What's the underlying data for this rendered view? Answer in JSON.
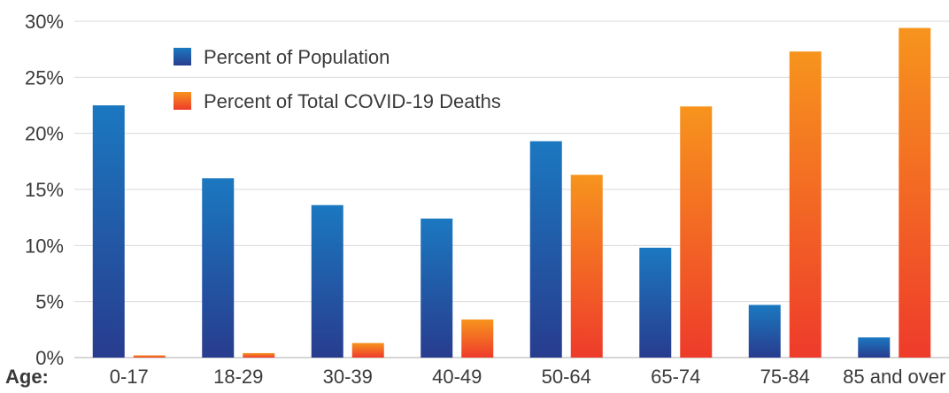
{
  "chart_data": {
    "type": "bar",
    "xlabel": "Age:",
    "categories": [
      "0-17",
      "18-29",
      "30-39",
      "40-49",
      "50-64",
      "65-74",
      "75-84",
      "85 and over"
    ],
    "series": [
      {
        "name": "Percent of Population",
        "values": [
          22.5,
          16.0,
          13.6,
          12.4,
          19.3,
          9.8,
          4.7,
          1.8
        ]
      },
      {
        "name": "Percent of Total COVID-19 Deaths",
        "values": [
          0.2,
          0.4,
          1.3,
          3.4,
          16.3,
          22.4,
          27.3,
          29.4
        ]
      }
    ],
    "yticks": [
      "0%",
      "5%",
      "10%",
      "15%",
      "20%",
      "25%",
      "30%"
    ],
    "ylim": [
      0,
      30
    ],
    "grid": true,
    "legend_position": "top-left",
    "colors": {
      "population_top": "#1b78c0",
      "population_bottom": "#283c8e",
      "deaths_top": "#f7941d",
      "deaths_bottom": "#ee3b2b"
    }
  }
}
